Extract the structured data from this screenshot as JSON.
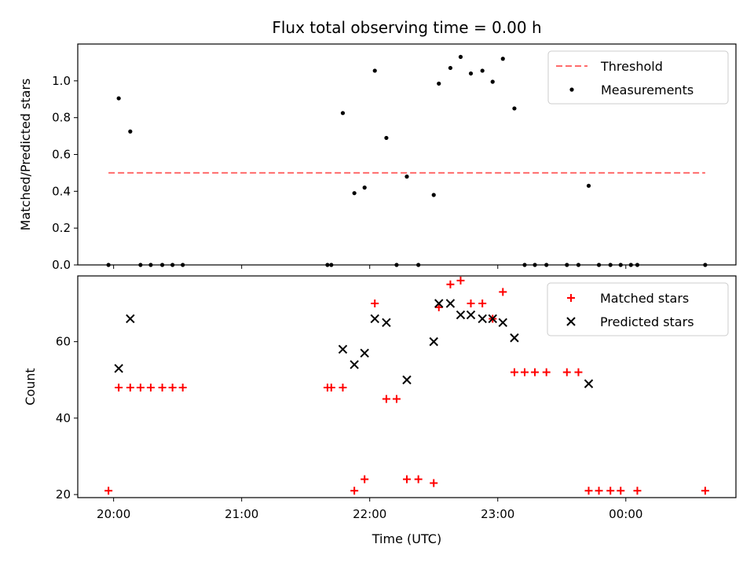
{
  "chart_data": {
    "type": "scatter",
    "title": "Flux total observing time = 0.00 h",
    "x_axis": {
      "label": "Time (UTC)",
      "unit": "hours since 20:00 UTC",
      "ticks": [
        {
          "v": 0,
          "label": "20:00"
        },
        {
          "v": 1,
          "label": "21:00"
        },
        {
          "v": 2,
          "label": "22:00"
        },
        {
          "v": 3,
          "label": "23:00"
        },
        {
          "v": 4,
          "label": "00:00"
        }
      ],
      "range": [
        -0.28,
        4.86
      ]
    },
    "panels": [
      {
        "ylabel": "Matched/Predicted stars",
        "ylim": [
          0,
          1.2
        ],
        "yticks": [
          {
            "v": 0,
            "label": "0.0"
          },
          {
            "v": 0.2,
            "label": "0.2"
          },
          {
            "v": 0.4,
            "label": "0.4"
          },
          {
            "v": 0.6,
            "label": "0.6"
          },
          {
            "v": 0.8,
            "label": "0.8"
          },
          {
            "v": 1.0,
            "label": "1.0"
          }
        ],
        "legend_position": "top-right",
        "series": [
          {
            "name": "Threshold",
            "kind": "dashed-line",
            "color": "#ff6b6b",
            "points": [
              [
                -0.04,
                0.5
              ],
              [
                4.62,
                0.5
              ]
            ]
          },
          {
            "name": "Measurements",
            "kind": "dot",
            "color": "#000000",
            "points": [
              [
                -0.04,
                0.0
              ],
              [
                0.04,
                0.905
              ],
              [
                0.13,
                0.725
              ],
              [
                0.21,
                0.0
              ],
              [
                0.29,
                0.0
              ],
              [
                0.38,
                0.0
              ],
              [
                0.46,
                0.0
              ],
              [
                0.54,
                0.0
              ],
              [
                1.67,
                0.0
              ],
              [
                1.7,
                0.0
              ],
              [
                1.79,
                0.825
              ],
              [
                1.88,
                0.39
              ],
              [
                1.96,
                0.42
              ],
              [
                2.04,
                1.055
              ],
              [
                2.13,
                0.69
              ],
              [
                2.21,
                0.0
              ],
              [
                2.29,
                0.48
              ],
              [
                2.38,
                0.0
              ],
              [
                2.5,
                0.38
              ],
              [
                2.54,
                0.985
              ],
              [
                2.63,
                1.07
              ],
              [
                2.71,
                1.13
              ],
              [
                2.79,
                1.04
              ],
              [
                2.88,
                1.055
              ],
              [
                2.96,
                0.995
              ],
              [
                3.04,
                1.12
              ],
              [
                3.13,
                0.85
              ],
              [
                3.21,
                0.0
              ],
              [
                3.29,
                0.0
              ],
              [
                3.38,
                0.0
              ],
              [
                3.54,
                0.0
              ],
              [
                3.63,
                0.0
              ],
              [
                3.71,
                0.43
              ],
              [
                3.79,
                0.0
              ],
              [
                3.88,
                0.0
              ],
              [
                3.96,
                0.0
              ],
              [
                4.04,
                0.0
              ],
              [
                4.09,
                0.0
              ],
              [
                4.62,
                0.0
              ]
            ]
          }
        ]
      },
      {
        "ylabel": "Count",
        "ylim": [
          19.2,
          77.2
        ],
        "yticks": [
          {
            "v": 20,
            "label": "20"
          },
          {
            "v": 40,
            "label": "40"
          },
          {
            "v": 60,
            "label": "60"
          }
        ],
        "legend_position": "top-right",
        "series": [
          {
            "name": "Matched stars",
            "kind": "plus",
            "color": "#ff0000",
            "points": [
              [
                -0.04,
                21
              ],
              [
                0.04,
                48
              ],
              [
                0.13,
                48
              ],
              [
                0.21,
                48
              ],
              [
                0.29,
                48
              ],
              [
                0.38,
                48
              ],
              [
                0.46,
                48
              ],
              [
                0.54,
                48
              ],
              [
                1.67,
                48
              ],
              [
                1.7,
                48
              ],
              [
                1.79,
                48
              ],
              [
                1.88,
                21
              ],
              [
                1.96,
                24
              ],
              [
                2.04,
                70
              ],
              [
                2.13,
                45
              ],
              [
                2.21,
                45
              ],
              [
                2.29,
                24
              ],
              [
                2.38,
                24
              ],
              [
                2.5,
                23
              ],
              [
                2.54,
                69
              ],
              [
                2.63,
                75
              ],
              [
                2.71,
                76
              ],
              [
                2.79,
                70
              ],
              [
                2.88,
                70
              ],
              [
                2.96,
                66
              ],
              [
                3.04,
                73
              ],
              [
                3.13,
                52
              ],
              [
                3.21,
                52
              ],
              [
                3.29,
                52
              ],
              [
                3.38,
                52
              ],
              [
                3.54,
                52
              ],
              [
                3.63,
                52
              ],
              [
                3.71,
                21
              ],
              [
                3.79,
                21
              ],
              [
                3.88,
                21
              ],
              [
                3.96,
                21
              ],
              [
                4.09,
                21
              ],
              [
                4.62,
                21
              ]
            ]
          },
          {
            "name": "Predicted stars",
            "kind": "x",
            "color": "#000000",
            "points": [
              [
                0.04,
                53
              ],
              [
                0.13,
                66
              ],
              [
                1.79,
                58
              ],
              [
                1.88,
                54
              ],
              [
                1.96,
                57
              ],
              [
                2.04,
                66
              ],
              [
                2.13,
                65
              ],
              [
                2.29,
                50
              ],
              [
                2.5,
                60
              ],
              [
                2.54,
                70
              ],
              [
                2.63,
                70
              ],
              [
                2.71,
                67
              ],
              [
                2.79,
                67
              ],
              [
                2.88,
                66
              ],
              [
                2.96,
                66
              ],
              [
                3.04,
                65
              ],
              [
                3.13,
                61
              ],
              [
                3.71,
                49
              ]
            ]
          }
        ]
      }
    ]
  }
}
